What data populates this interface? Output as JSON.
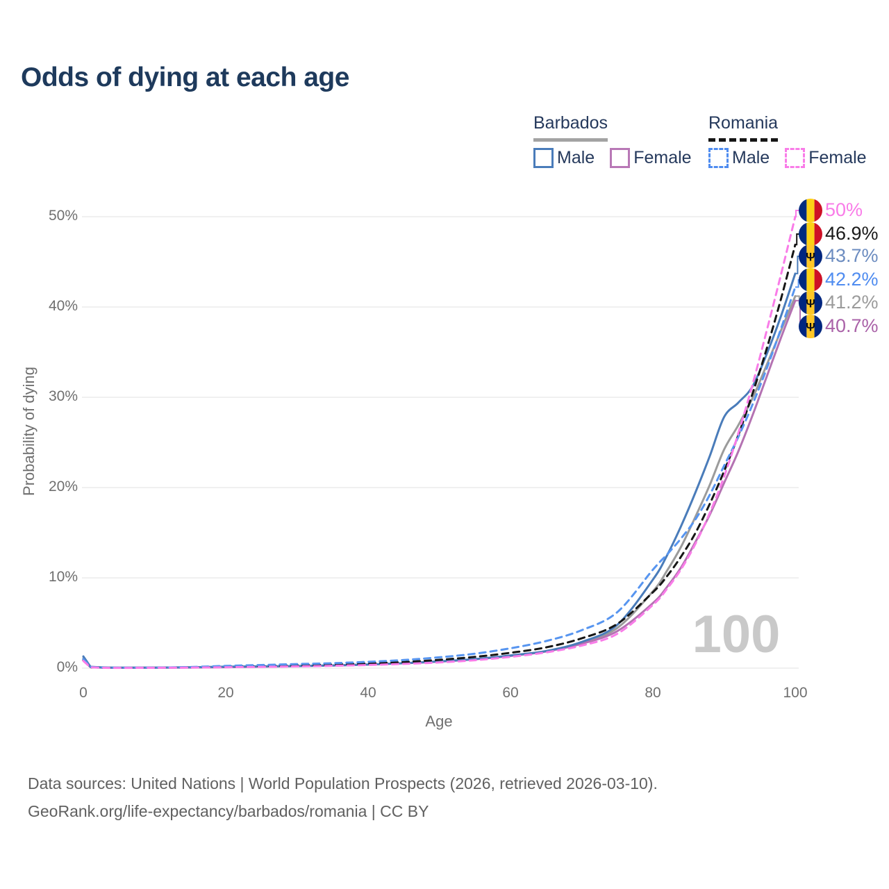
{
  "title": "Odds of dying at each age",
  "legend": {
    "groups": [
      {
        "country": "Barbados",
        "line_style": "solid",
        "underline_color": "#a3a3a3",
        "items": [
          {
            "label": "Male",
            "color": "#4a7cba"
          },
          {
            "label": "Female",
            "color": "#b878b6"
          }
        ]
      },
      {
        "country": "Romania",
        "line_style": "dashed",
        "underline_color": "#161616",
        "items": [
          {
            "label": "Male",
            "color": "#4f8cf0"
          },
          {
            "label": "Female",
            "color": "#f97ce8"
          }
        ]
      }
    ]
  },
  "watermark_age": "100",
  "footer": {
    "line1": "Data sources: United Nations | World Population Prospects (2026, retrieved 2026-03-10).",
    "line2": "GeoRank.org/life-expectancy/barbados/romania | CC BY"
  },
  "chart_data": {
    "type": "line",
    "title": "Odds of dying at each age",
    "xlabel": "Age",
    "ylabel": "Probability of dying",
    "xlim": [
      0,
      100
    ],
    "ylim": [
      0,
      50
    ],
    "x_ticks": [
      0,
      20,
      40,
      60,
      80,
      100
    ],
    "y_ticks": [
      "0%",
      "10%",
      "20%",
      "30%",
      "40%",
      "50%"
    ],
    "y_tick_values": [
      0,
      10,
      20,
      30,
      40,
      50
    ],
    "grid": "horizontal-only",
    "legend_position": "top-right",
    "ages": [
      0,
      1,
      3,
      5,
      10,
      15,
      20,
      25,
      30,
      35,
      40,
      45,
      50,
      55,
      60,
      65,
      70,
      75,
      80,
      82,
      84,
      86,
      88,
      90,
      92,
      94,
      96,
      98,
      100
    ],
    "series": [
      {
        "name": "Barbados Total",
        "country": "Barbados",
        "sex": "Both",
        "color": "#9b9b9b",
        "dashed": false,
        "end_label": "41.2%",
        "label_color": "#9b9b9b",
        "flag": "barbados",
        "values": [
          1.1,
          0.12,
          0.06,
          0.05,
          0.06,
          0.09,
          0.14,
          0.18,
          0.23,
          0.3,
          0.4,
          0.55,
          0.74,
          1.0,
          1.38,
          1.88,
          2.8,
          4.45,
          8.5,
          10.8,
          13.5,
          16.8,
          20.3,
          24.2,
          26.9,
          29.9,
          33.6,
          37.4,
          41.2
        ]
      },
      {
        "name": "Barbados Female",
        "country": "Barbados",
        "sex": "Female",
        "color": "#b472b2",
        "dashed": false,
        "end_label": "40.7%",
        "label_color": "#aa62a8",
        "flag": "barbados",
        "values": [
          0.9,
          0.1,
          0.05,
          0.04,
          0.05,
          0.07,
          0.11,
          0.15,
          0.21,
          0.29,
          0.4,
          0.54,
          0.72,
          0.98,
          1.35,
          1.85,
          2.7,
          4.1,
          7.2,
          9.0,
          11.2,
          14.0,
          17.0,
          20.5,
          24.0,
          28.0,
          32.3,
          36.6,
          40.7
        ]
      },
      {
        "name": "Barbados Male",
        "country": "Barbados",
        "sex": "Male",
        "color": "#4a7cba",
        "dashed": false,
        "end_label": "43.7%",
        "label_color": "#6c8cc0",
        "flag": "barbados",
        "values": [
          1.3,
          0.15,
          0.08,
          0.06,
          0.06,
          0.1,
          0.16,
          0.2,
          0.24,
          0.3,
          0.4,
          0.55,
          0.75,
          1.0,
          1.4,
          1.9,
          2.9,
          4.8,
          9.8,
          12.5,
          15.8,
          19.5,
          23.5,
          27.8,
          29.4,
          31.2,
          34.8,
          39.0,
          43.7
        ]
      },
      {
        "name": "Romania Total",
        "country": "Romania",
        "sex": "Both",
        "color": "#161616",
        "dashed": true,
        "end_label": "46.9%",
        "label_color": "#1a1a1a",
        "flag": "romania",
        "values": [
          0.9,
          0.1,
          0.05,
          0.04,
          0.05,
          0.09,
          0.17,
          0.24,
          0.31,
          0.4,
          0.52,
          0.68,
          0.92,
          1.25,
          1.7,
          2.3,
          3.3,
          4.9,
          8.4,
          10.2,
          12.4,
          15.0,
          18.2,
          21.8,
          25.8,
          30.4,
          35.4,
          40.9,
          46.9
        ]
      },
      {
        "name": "Romania Male",
        "country": "Romania",
        "sex": "Male",
        "color": "#5795f0",
        "dashed": true,
        "end_label": "42.2%",
        "label_color": "#4f8cf0",
        "flag": "romania",
        "values": [
          1.0,
          0.12,
          0.06,
          0.05,
          0.06,
          0.12,
          0.25,
          0.35,
          0.45,
          0.55,
          0.7,
          0.9,
          1.2,
          1.6,
          2.2,
          3.0,
          4.2,
          6.2,
          10.9,
          12.6,
          14.4,
          16.5,
          19.2,
          22.4,
          25.6,
          29.2,
          33.2,
          37.6,
          42.2
        ]
      },
      {
        "name": "Romania Female",
        "country": "Romania",
        "sex": "Female",
        "color": "#f97ce8",
        "dashed": true,
        "end_label": "50%",
        "label_color": "#f97ce8",
        "flag": "romania",
        "values": [
          0.8,
          0.09,
          0.04,
          0.03,
          0.04,
          0.06,
          0.1,
          0.14,
          0.19,
          0.26,
          0.35,
          0.47,
          0.63,
          0.88,
          1.25,
          1.75,
          2.5,
          3.8,
          7.0,
          8.8,
          11.0,
          13.8,
          17.2,
          21.2,
          26.0,
          31.4,
          37.4,
          43.6,
          50.0
        ]
      }
    ],
    "flag_colors": {
      "romania": [
        "#002B7F",
        "#FCD116",
        "#CE1126"
      ],
      "barbados": [
        "#00267F",
        "#FFC726",
        "#00267F"
      ]
    }
  }
}
